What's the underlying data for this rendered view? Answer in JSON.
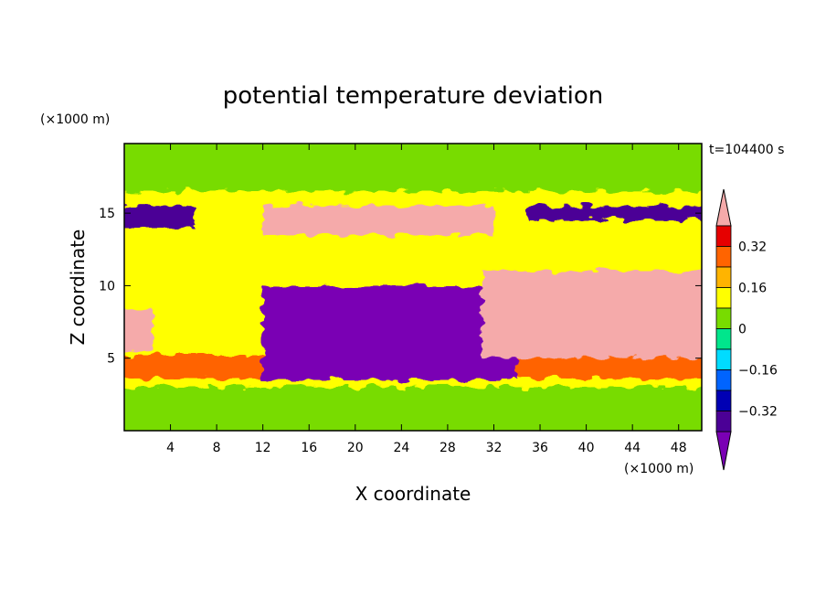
{
  "chart_data": {
    "type": "heatmap",
    "title": "potential temperature deviation",
    "xlabel": "X coordinate",
    "ylabel": "Z coordinate",
    "x_unit": "(×1000 m)",
    "y_unit": "(×1000 m)",
    "time_label": "t=104400 s",
    "xlim": [
      0,
      50
    ],
    "ylim": [
      0,
      19.8
    ],
    "x_ticks": [
      4,
      8,
      12,
      16,
      20,
      24,
      28,
      32,
      36,
      40,
      44,
      48
    ],
    "y_ticks": [
      5,
      10,
      15
    ],
    "colorbar": {
      "levels": [
        -0.4,
        -0.32,
        -0.24,
        -0.16,
        -0.08,
        0,
        0.08,
        0.16,
        0.24,
        0.32,
        0.4
      ],
      "tick_labels": [
        "0.32",
        "0.16",
        "0",
        "−0.16",
        "−0.32"
      ],
      "tick_values": [
        0.32,
        0.16,
        0,
        -0.16,
        -0.32
      ],
      "colors": [
        "#7a00b4",
        "#4b0096",
        "#0000b4",
        "#0064ff",
        "#00dcff",
        "#00e68c",
        "#78dc00",
        "#ffff00",
        "#ffb400",
        "#ff6400",
        "#e60000",
        "#f5aaaa"
      ],
      "extends": "both"
    },
    "regions": [
      {
        "name": "surface-mixed-layer",
        "x": [
          0,
          50
        ],
        "z": [
          0,
          3
        ],
        "value": 0.0
      },
      {
        "name": "stable-warm-band",
        "x": [
          0,
          50
        ],
        "z": [
          3.6,
          5.2
        ],
        "value": 0.3
      },
      {
        "name": "cold-plume",
        "x": [
          12,
          34
        ],
        "z": [
          3.5,
          10
        ],
        "value": -0.45
      },
      {
        "name": "warm-anomaly-right",
        "x": [
          31,
          50
        ],
        "z": [
          5,
          11
        ],
        "value": 0.45
      },
      {
        "name": "warm-anomaly-left",
        "x": [
          0,
          2.5
        ],
        "z": [
          5.5,
          8.5
        ],
        "value": 0.45
      },
      {
        "name": "warm-anomaly-upper",
        "x": [
          12,
          32
        ],
        "z": [
          13.5,
          15.5
        ],
        "value": 0.45
      },
      {
        "name": "cold-layer-upper-left",
        "x": [
          0,
          6
        ],
        "z": [
          14,
          15.5
        ],
        "value": -0.4
      },
      {
        "name": "cold-layer-upper-right",
        "x": [
          35,
          50
        ],
        "z": [
          14.5,
          15.5
        ],
        "value": -0.35
      },
      {
        "name": "upper-neutral",
        "x": [
          0,
          50
        ],
        "z": [
          16.5,
          19.8
        ],
        "value": 0.02
      }
    ]
  }
}
